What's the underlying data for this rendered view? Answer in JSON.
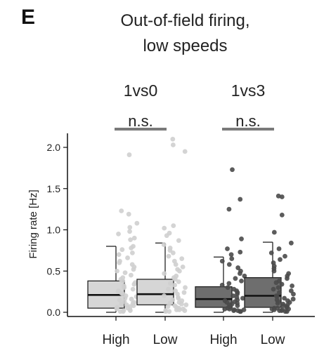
{
  "panel_label": "E",
  "chart_data": {
    "type": "box",
    "title": [
      "Out-of-field firing,",
      "low speeds"
    ],
    "ylabel": "Firing rate [Hz]",
    "ylim": [
      0,
      2.1
    ],
    "yticks": [
      "0.0",
      "0.5",
      "1.0",
      "1.5",
      "2.0"
    ],
    "ytick_values": [
      0.0,
      0.5,
      1.0,
      1.5,
      2.0
    ],
    "categories": [
      "High",
      "Low",
      "High",
      "Low"
    ],
    "groups": [
      {
        "name": "1vs0",
        "significance": "n.s.",
        "color": "#d6d6d6",
        "point_color": "#cfcfcf"
      },
      {
        "name": "1vs3",
        "significance": "n.s.",
        "color": "#6e6e6e",
        "point_color": "#4a4a4a"
      }
    ],
    "boxes": [
      {
        "category": "High",
        "group": "1vs0",
        "q1": 0.05,
        "median": 0.21,
        "q3": 0.38,
        "whisker_low": 0.0,
        "whisker_high": 0.8
      },
      {
        "category": "Low",
        "group": "1vs0",
        "q1": 0.09,
        "median": 0.22,
        "q3": 0.4,
        "whisker_low": 0.0,
        "whisker_high": 0.84
      },
      {
        "category": "High",
        "group": "1vs3",
        "q1": 0.06,
        "median": 0.16,
        "q3": 0.31,
        "whisker_low": 0.0,
        "whisker_high": 0.67
      },
      {
        "category": "Low",
        "group": "1vs3",
        "q1": 0.06,
        "median": 0.2,
        "q3": 0.42,
        "whisker_low": 0.0,
        "whisker_high": 0.85
      }
    ],
    "points": [
      [
        1.91,
        1.23,
        1.19,
        1.08,
        1.03,
        0.98,
        0.95,
        0.9,
        0.88,
        0.8,
        0.78,
        0.76,
        0.72,
        0.7,
        0.66,
        0.62,
        0.6,
        0.58,
        0.55,
        0.52,
        0.5,
        0.48,
        0.45,
        0.42,
        0.4,
        0.38,
        0.36,
        0.34,
        0.32,
        0.3,
        0.28,
        0.26,
        0.25,
        0.23,
        0.22,
        0.2,
        0.19,
        0.17,
        0.16,
        0.15,
        0.13,
        0.12,
        0.11,
        0.1,
        0.09,
        0.08,
        0.07,
        0.06,
        0.05,
        0.04,
        0.03,
        0.02,
        0.02,
        0.01,
        0.01
      ],
      [
        2.1,
        2.03,
        1.95,
        1.05,
        1.02,
        0.96,
        0.93,
        0.87,
        0.82,
        0.78,
        0.75,
        0.72,
        0.68,
        0.65,
        0.62,
        0.58,
        0.55,
        0.52,
        0.5,
        0.47,
        0.44,
        0.42,
        0.4,
        0.37,
        0.35,
        0.33,
        0.3,
        0.28,
        0.26,
        0.24,
        0.22,
        0.2,
        0.18,
        0.17,
        0.15,
        0.14,
        0.12,
        0.11,
        0.1,
        0.09,
        0.08,
        0.07,
        0.06,
        0.05,
        0.04,
        0.03,
        0.03,
        0.02,
        0.02,
        0.01,
        0.01
      ],
      [
        1.73,
        1.37,
        1.25,
        0.89,
        0.77,
        0.73,
        0.7,
        0.65,
        0.62,
        0.58,
        0.54,
        0.5,
        0.47,
        0.44,
        0.41,
        0.38,
        0.35,
        0.33,
        0.3,
        0.28,
        0.26,
        0.24,
        0.22,
        0.2,
        0.18,
        0.17,
        0.15,
        0.14,
        0.13,
        0.12,
        0.11,
        0.1,
        0.09,
        0.08,
        0.07,
        0.06,
        0.05,
        0.04,
        0.04,
        0.03,
        0.03,
        0.02,
        0.02,
        0.01,
        0.01
      ],
      [
        1.41,
        1.4,
        1.18,
        0.97,
        0.84,
        0.77,
        0.72,
        0.68,
        0.64,
        0.6,
        0.56,
        0.53,
        0.5,
        0.47,
        0.44,
        0.41,
        0.38,
        0.36,
        0.34,
        0.32,
        0.3,
        0.28,
        0.26,
        0.24,
        0.22,
        0.2,
        0.19,
        0.17,
        0.16,
        0.15,
        0.14,
        0.13,
        0.12,
        0.11,
        0.1,
        0.09,
        0.08,
        0.07,
        0.06,
        0.05,
        0.05,
        0.04,
        0.04,
        0.03,
        0.03,
        0.02,
        0.02,
        0.01,
        0.01
      ]
    ],
    "grid": false,
    "legend": "none"
  }
}
